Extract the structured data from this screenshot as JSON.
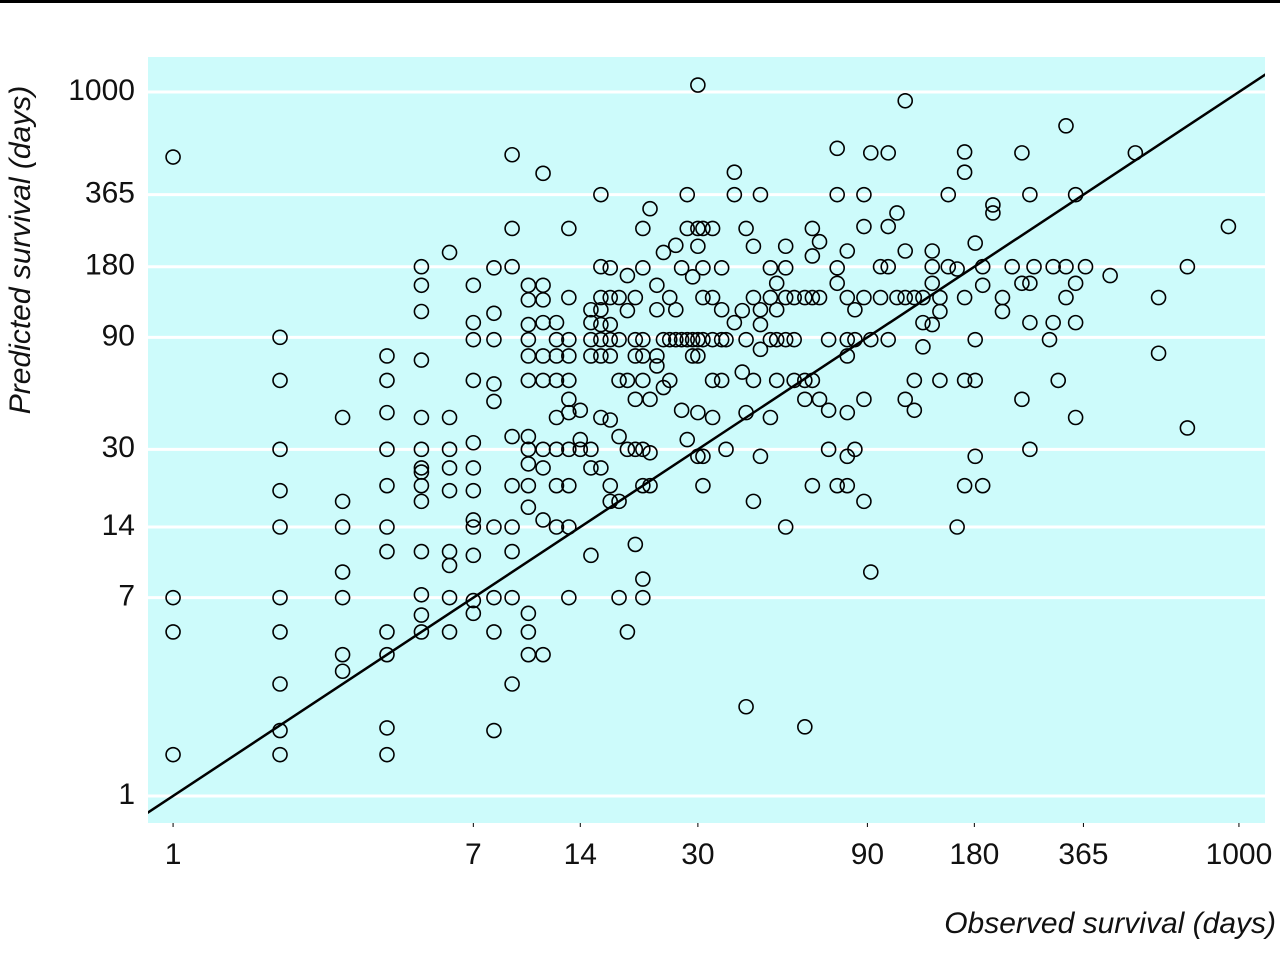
{
  "chart_data": {
    "type": "scatter",
    "xlabel": "Observed survival (days)",
    "ylabel": "Predicted survival (days)",
    "log_x": true,
    "log_y": true,
    "grid": true,
    "identity_line": true,
    "background": "#cdfbfb",
    "color": "#000000",
    "xlim": [
      0.85,
      1184
    ],
    "ylim": [
      0.767,
      1409
    ],
    "xticks": [
      1,
      7,
      14,
      30,
      90,
      180,
      365,
      1000
    ],
    "yticks": [
      1,
      7,
      14,
      30,
      90,
      180,
      365,
      1000
    ],
    "x": [
      1,
      1,
      1,
      1,
      2,
      2,
      2,
      2,
      2,
      2,
      2,
      2,
      2,
      2,
      3,
      3,
      3,
      3,
      3,
      3,
      3,
      4,
      4,
      4,
      4,
      4,
      4,
      4,
      4,
      4,
      4,
      4,
      5,
      5,
      5,
      5,
      5,
      5,
      5,
      5,
      5,
      5,
      5,
      5,
      5,
      5,
      6,
      6,
      6,
      6,
      6,
      6,
      6,
      6,
      6,
      7,
      7,
      7,
      7,
      7,
      7,
      7,
      7,
      7,
      7,
      7,
      7,
      8,
      8,
      8,
      8,
      8,
      8,
      8,
      8,
      8,
      9,
      9,
      9,
      9,
      9,
      9,
      9,
      9,
      9,
      10,
      10,
      10,
      10,
      10,
      10,
      10,
      10,
      10,
      10,
      10,
      10,
      10,
      10,
      11,
      11,
      11,
      11,
      11,
      11,
      11,
      11,
      11,
      11,
      12,
      12,
      12,
      12,
      12,
      12,
      12,
      12,
      13,
      13,
      13,
      13,
      13,
      13,
      13,
      13,
      13,
      13,
      13,
      14,
      14,
      14,
      15,
      15,
      15,
      15,
      15,
      15,
      15,
      16,
      16,
      16,
      16,
      16,
      16,
      16,
      16,
      16,
      17,
      17,
      17,
      17,
      17,
      17,
      17,
      17,
      18,
      18,
      18,
      18,
      18,
      18,
      19,
      19,
      19,
      19,
      19,
      20,
      20,
      20,
      20,
      20,
      20,
      21,
      21,
      21,
      21,
      21,
      21,
      21,
      21,
      21,
      22,
      22,
      22,
      22,
      23,
      23,
      23,
      23,
      24,
      24,
      24,
      25,
      25,
      25,
      26,
      26,
      26,
      27,
      27,
      27,
      28,
      28,
      28,
      28,
      29,
      29,
      29,
      30,
      30,
      30,
      30,
      30,
      30,
      30,
      31,
      31,
      31,
      31,
      31,
      31,
      33,
      33,
      33,
      33,
      33,
      35,
      35,
      35,
      35,
      36,
      36,
      38,
      38,
      38,
      40,
      40,
      41,
      41,
      41,
      41,
      43,
      43,
      43,
      43,
      45,
      45,
      45,
      45,
      45,
      48,
      48,
      48,
      48,
      50,
      50,
      50,
      50,
      53,
      53,
      53,
      53,
      53,
      56,
      56,
      56,
      60,
      60,
      60,
      60,
      63,
      63,
      63,
      63,
      63,
      66,
      66,
      66,
      70,
      70,
      70,
      74,
      74,
      74,
      74,
      74,
      79,
      79,
      79,
      79,
      79,
      79,
      79,
      83,
      83,
      83,
      88,
      88,
      88,
      88,
      88,
      92,
      92,
      92,
      98,
      98,
      103,
      103,
      103,
      103,
      109,
      109,
      115,
      115,
      115,
      115,
      122,
      122,
      122,
      129,
      129,
      129,
      137,
      137,
      137,
      137,
      144,
      144,
      144,
      152,
      152,
      161,
      161,
      169,
      169,
      169,
      169,
      169,
      181,
      181,
      181,
      181,
      190,
      190,
      190,
      203,
      203,
      216,
      216,
      230,
      245,
      245,
      245,
      258,
      258,
      258,
      258,
      265,
      293,
      300,
      300,
      310,
      326,
      326,
      326,
      347,
      347,
      347,
      347,
      370,
      434,
      511,
      594,
      594,
      716,
      716,
      934
    ],
    "values": [
      528,
      7,
      5,
      1.5,
      90,
      59,
      30,
      20,
      14,
      7,
      5,
      3,
      1.9,
      1.5,
      41,
      18,
      14,
      9,
      7,
      4,
      3.4,
      75,
      59,
      43,
      30,
      21,
      14,
      11,
      5,
      4,
      1.95,
      1.5,
      180,
      150,
      116,
      72,
      41,
      30,
      25,
      24,
      21,
      18,
      11,
      7.2,
      5.9,
      5,
      207,
      41,
      30,
      25,
      20,
      11,
      9.6,
      7,
      5,
      150,
      104,
      88,
      59,
      32,
      25,
      20,
      15,
      14,
      10.6,
      6.8,
      6,
      178,
      114,
      88,
      57,
      48,
      14,
      7,
      5,
      1.9,
      540,
      262,
      180,
      34,
      21,
      14,
      11,
      7,
      3,
      150,
      130,
      102,
      88,
      75,
      59,
      34,
      30,
      26,
      21,
      17,
      6,
      5,
      4,
      450,
      150,
      130,
      104,
      75,
      59,
      30,
      25,
      15,
      4,
      104,
      88,
      75,
      59,
      41,
      30,
      21,
      14,
      262,
      133,
      88,
      75,
      59,
      49,
      43,
      30,
      21,
      14,
      7,
      44,
      33,
      30,
      118,
      104,
      88,
      75,
      30,
      25,
      10.6,
      365,
      180,
      133,
      118,
      102,
      88,
      75,
      41,
      25,
      178,
      133,
      102,
      88,
      75,
      40,
      21,
      18,
      133,
      88,
      59,
      34,
      18,
      7,
      165,
      117,
      59,
      30,
      5,
      133,
      88,
      75,
      49,
      30,
      11.8,
      262,
      178,
      88,
      75,
      59,
      30,
      21,
      8.4,
      7,
      318,
      49,
      21,
      29,
      150,
      118,
      75,
      68,
      207,
      88,
      55,
      133,
      88,
      59,
      88,
      118,
      222,
      178,
      88,
      44,
      365,
      262,
      88,
      33,
      163,
      88,
      75,
      1070,
      262,
      220,
      88,
      75,
      28,
      43,
      262,
      178,
      133,
      88,
      28,
      21,
      262,
      133,
      88,
      59,
      41,
      178,
      118,
      88,
      59,
      30,
      88,
      455,
      365,
      104,
      64,
      117,
      262,
      88,
      43,
      2.4,
      220,
      133,
      59,
      18,
      365,
      118,
      102,
      28,
      80,
      178,
      133,
      88,
      41,
      118,
      153,
      88,
      59,
      220,
      178,
      133,
      88,
      14,
      88,
      59,
      133,
      133,
      59,
      49,
      1.97,
      262,
      200,
      133,
      59,
      21,
      230,
      133,
      49,
      88,
      44,
      30,
      575,
      365,
      178,
      153,
      21,
      210,
      133,
      88,
      75,
      43,
      28,
      21,
      118,
      88,
      30,
      365,
      267,
      133,
      49,
      18,
      550,
      88,
      9,
      133,
      180,
      550,
      267,
      88,
      180,
      305,
      133,
      917,
      210,
      133,
      49,
      133,
      59,
      44,
      133,
      82,
      104,
      180,
      210,
      153,
      102,
      133,
      116,
      59,
      365,
      180,
      176,
      14,
      555,
      455,
      133,
      59,
      21,
      227,
      88,
      28,
      59,
      150,
      180,
      21,
      330,
      305,
      133,
      116,
      180,
      550,
      153,
      49,
      365,
      153,
      30,
      104,
      180,
      88,
      180,
      104,
      59,
      717,
      180,
      133,
      365,
      153,
      104,
      41,
      180,
      165,
      550,
      133,
      77,
      180,
      37,
      267
    ]
  }
}
